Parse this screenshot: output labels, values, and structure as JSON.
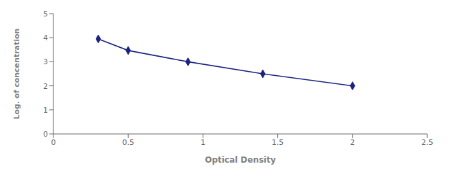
{
  "chart_data": {
    "type": "line",
    "x": [
      0.3,
      0.5,
      0.9,
      1.4,
      2.0
    ],
    "values": [
      3.95,
      3.47,
      3.0,
      2.5,
      2.0
    ],
    "color": "#1a237e",
    "marker": "diamond",
    "line_style": "solid",
    "xlabel": "Optical Density",
    "ylabel": "Log. of concentration",
    "xlim": [
      0,
      2.5
    ],
    "ylim": [
      0,
      5
    ],
    "xticks": [
      0,
      0.5,
      1.0,
      1.5,
      2.0,
      2.5
    ],
    "yticks": [
      0,
      1,
      2,
      3,
      4,
      5
    ],
    "grid": false
  }
}
